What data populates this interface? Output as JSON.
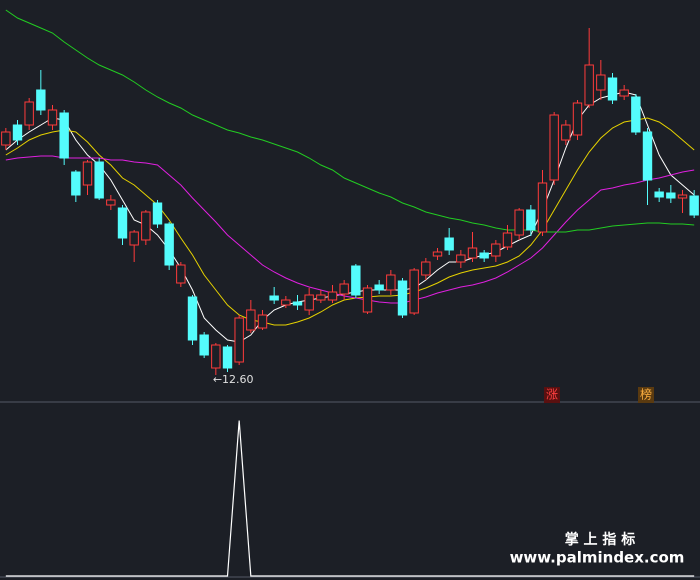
{
  "chart_data": [
    {
      "type": "candlestick",
      "up_color": "#ff3b3b",
      "down_color": "#54fcfc",
      "ylim": [
        12.35,
        16.35
      ],
      "low_label": "←12.60",
      "open": [
        14.9,
        15.1,
        15.1,
        15.45,
        15.1,
        15.22,
        14.63,
        14.5,
        14.73,
        14.3,
        14.27,
        13.9,
        13.95,
        14.32,
        14.11,
        13.52,
        13.38,
        13.0,
        12.67,
        12.88,
        12.73,
        13.05,
        13.07,
        13.39,
        13.3,
        13.33,
        13.25,
        13.35,
        13.35,
        13.41,
        13.69,
        13.23,
        13.5,
        13.45,
        13.54,
        13.22,
        13.6,
        13.79,
        13.97,
        13.73,
        13.77,
        13.82,
        13.79,
        13.88,
        14.0,
        14.25,
        14.03,
        14.55,
        14.95,
        15.0,
        15.3,
        15.45,
        15.57,
        15.39,
        15.38,
        15.03,
        14.43,
        14.42,
        14.37,
        14.39
      ],
      "high": [
        15.07,
        15.15,
        15.37,
        15.65,
        15.3,
        15.25,
        14.65,
        14.75,
        14.77,
        14.4,
        14.3,
        14.05,
        14.25,
        14.35,
        14.13,
        13.73,
        13.4,
        13.03,
        12.92,
        12.9,
        13.2,
        13.35,
        13.25,
        13.48,
        13.39,
        13.4,
        13.47,
        13.45,
        13.5,
        13.55,
        13.71,
        13.5,
        13.55,
        13.65,
        13.57,
        13.67,
        13.77,
        13.87,
        14.07,
        13.85,
        14.03,
        13.85,
        13.95,
        14.1,
        14.27,
        14.3,
        14.65,
        15.23,
        15.15,
        15.35,
        16.07,
        15.75,
        15.62,
        15.5,
        15.41,
        15.07,
        14.47,
        14.5,
        14.45,
        14.45
      ],
      "low": [
        14.85,
        14.9,
        15.05,
        15.2,
        15.05,
        14.7,
        14.33,
        14.4,
        14.35,
        14.25,
        13.9,
        13.73,
        13.9,
        14.07,
        13.65,
        13.48,
        12.9,
        12.77,
        12.6,
        12.63,
        12.7,
        13.02,
        13.05,
        13.31,
        13.27,
        13.25,
        13.2,
        13.32,
        13.32,
        13.35,
        13.37,
        13.21,
        13.41,
        13.4,
        13.17,
        13.2,
        13.55,
        13.75,
        13.8,
        13.67,
        13.73,
        13.73,
        13.73,
        13.85,
        13.95,
        13.99,
        13.99,
        14.5,
        14.9,
        14.95,
        15.27,
        15.35,
        15.31,
        15.35,
        15.0,
        14.3,
        14.33,
        14.32,
        14.22,
        14.17
      ],
      "close": [
        15.03,
        14.95,
        15.33,
        15.25,
        15.25,
        14.77,
        14.4,
        14.73,
        14.37,
        14.35,
        13.97,
        14.03,
        14.23,
        14.11,
        13.7,
        13.7,
        12.95,
        12.8,
        12.9,
        12.67,
        13.17,
        13.25,
        13.2,
        13.35,
        13.35,
        13.3,
        13.4,
        13.4,
        13.43,
        13.51,
        13.4,
        13.47,
        13.45,
        13.6,
        13.2,
        13.65,
        13.73,
        13.83,
        13.85,
        13.8,
        13.87,
        13.77,
        13.91,
        14.02,
        14.25,
        14.05,
        14.52,
        15.2,
        15.1,
        15.32,
        15.7,
        15.6,
        15.35,
        15.45,
        15.03,
        14.55,
        14.38,
        14.37,
        14.4,
        14.2
      ],
      "lines": [
        {
          "color": "#ffffff",
          "values": [
            14.85,
            14.95,
            15.03,
            15.1,
            15.17,
            15.15,
            14.95,
            14.8,
            14.7,
            14.55,
            14.35,
            14.15,
            14.1,
            14.0,
            13.85,
            13.67,
            13.45,
            13.17,
            13.05,
            12.95,
            12.93,
            13.0,
            13.15,
            13.25,
            13.3,
            13.33,
            13.35,
            13.37,
            13.39,
            13.41,
            13.43,
            13.45,
            13.45,
            13.45,
            13.45,
            13.47,
            13.55,
            13.65,
            13.73,
            13.73,
            13.77,
            13.8,
            13.83,
            13.89,
            13.95,
            14.0,
            14.25,
            14.55,
            14.87,
            15.15,
            15.3,
            15.37,
            15.4,
            15.43,
            15.4,
            15.1,
            14.8,
            14.6,
            14.5,
            14.4
          ]
        },
        {
          "color": "#e6d200",
          "values": [
            14.8,
            14.87,
            14.95,
            15.0,
            15.03,
            15.05,
            15.03,
            14.93,
            14.8,
            14.7,
            14.57,
            14.5,
            14.4,
            14.3,
            14.15,
            13.97,
            13.8,
            13.6,
            13.45,
            13.3,
            13.2,
            13.15,
            13.13,
            13.1,
            13.1,
            13.13,
            13.17,
            13.23,
            13.3,
            13.35,
            13.37,
            13.38,
            13.39,
            13.39,
            13.4,
            13.43,
            13.47,
            13.52,
            13.58,
            13.62,
            13.65,
            13.67,
            13.69,
            13.73,
            13.79,
            13.9,
            14.05,
            14.25,
            14.45,
            14.65,
            14.83,
            14.97,
            15.07,
            15.13,
            15.15,
            15.17,
            15.13,
            15.05,
            14.95,
            14.85
          ]
        },
        {
          "color": "#e020e0",
          "values": [
            14.75,
            14.77,
            14.78,
            14.79,
            14.79,
            14.77,
            14.77,
            14.77,
            14.77,
            14.75,
            14.75,
            14.73,
            14.72,
            14.7,
            14.6,
            14.5,
            14.37,
            14.25,
            14.13,
            14.0,
            13.9,
            13.8,
            13.7,
            13.63,
            13.57,
            13.52,
            13.48,
            13.45,
            13.42,
            13.39,
            13.37,
            13.35,
            13.33,
            13.32,
            13.32,
            13.35,
            13.38,
            13.42,
            13.45,
            13.48,
            13.5,
            13.53,
            13.57,
            13.63,
            13.7,
            13.77,
            13.87,
            14.0,
            14.13,
            14.25,
            14.35,
            14.45,
            14.47,
            14.5,
            14.52,
            14.55,
            14.57,
            14.6,
            14.63,
            14.65
          ]
        },
        {
          "color": "#22cc22",
          "values": [
            16.25,
            16.17,
            16.12,
            16.07,
            16.02,
            15.93,
            15.85,
            15.77,
            15.7,
            15.65,
            15.6,
            15.53,
            15.45,
            15.38,
            15.32,
            15.27,
            15.2,
            15.15,
            15.1,
            15.05,
            15.02,
            14.98,
            14.95,
            14.91,
            14.87,
            14.83,
            14.77,
            14.7,
            14.65,
            14.57,
            14.52,
            14.47,
            14.42,
            14.38,
            14.32,
            14.28,
            14.23,
            14.2,
            14.17,
            14.15,
            14.12,
            14.1,
            14.07,
            14.05,
            14.05,
            14.05,
            14.03,
            14.03,
            14.03,
            14.05,
            14.05,
            14.07,
            14.09,
            14.1,
            14.11,
            14.12,
            14.12,
            14.11,
            14.11,
            14.1
          ]
        }
      ],
      "markers": [
        "涨",
        "榜"
      ]
    },
    {
      "type": "line",
      "ylim": [
        0,
        1.1
      ],
      "color": "#ffffff",
      "values": [
        0,
        0,
        0,
        0,
        0,
        0,
        0,
        0,
        0,
        0,
        0,
        0,
        0,
        0,
        0,
        0,
        0,
        0,
        0,
        0,
        1,
        0,
        0,
        0,
        0,
        0,
        0,
        0,
        0,
        0,
        0,
        0,
        0,
        0,
        0,
        0,
        0,
        0,
        0,
        0,
        0,
        0,
        0,
        0,
        0,
        0,
        0,
        0,
        0,
        0,
        0,
        0,
        0,
        0,
        0,
        0,
        0,
        0,
        0,
        0
      ],
      "watermark_title": "掌 上 指 标",
      "watermark_url": "www.palmindex.com"
    }
  ]
}
